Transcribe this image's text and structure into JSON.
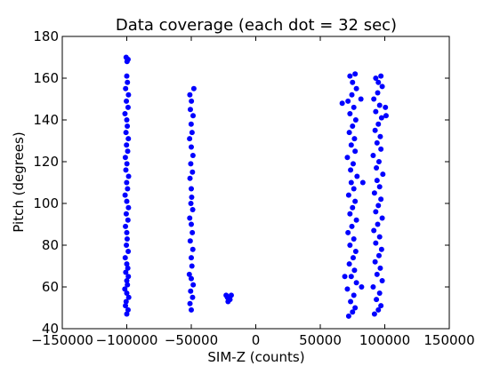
{
  "chart_data": {
    "type": "scatter",
    "title": "Data coverage (each dot = 32 sec)",
    "xlabel": "SIM-Z (counts)",
    "ylabel": "Pitch (degrees)",
    "xlim": [
      -150000,
      150000
    ],
    "ylim": [
      40,
      180
    ],
    "x_ticks": [
      -150000,
      -100000,
      -50000,
      0,
      50000,
      100000,
      150000
    ],
    "x_tick_labels": [
      "−150000",
      "−100000",
      "−50000",
      "0",
      "50000",
      "100000",
      "150000"
    ],
    "y_ticks": [
      40,
      60,
      80,
      100,
      120,
      140,
      160,
      180
    ],
    "y_tick_labels": [
      "40",
      "60",
      "80",
      "100",
      "120",
      "140",
      "160",
      "180"
    ],
    "grid": false,
    "marker_color": "#0000ff",
    "series": [
      {
        "points": [
          [
            -100000,
            47
          ],
          [
            -99000,
            49
          ],
          [
            -101000,
            51
          ],
          [
            -100500,
            53
          ],
          [
            -98500,
            55
          ],
          [
            -100000,
            57
          ],
          [
            -101500,
            59
          ],
          [
            -99500,
            61
          ],
          [
            -100000,
            63
          ],
          [
            -98800,
            65
          ],
          [
            -100800,
            67
          ],
          [
            -99200,
            69
          ],
          [
            -100000,
            71
          ],
          [
            -101200,
            74
          ],
          [
            -98900,
            77
          ],
          [
            -100300,
            80
          ],
          [
            -99700,
            83
          ],
          [
            -100000,
            86
          ],
          [
            -101000,
            89
          ],
          [
            -99100,
            92
          ],
          [
            -100400,
            95
          ],
          [
            -98700,
            98
          ],
          [
            -100000,
            101
          ],
          [
            -101300,
            104
          ],
          [
            -99400,
            107
          ],
          [
            -100100,
            110
          ],
          [
            -98600,
            113
          ],
          [
            -100700,
            116
          ],
          [
            -99900,
            119
          ],
          [
            -101100,
            122
          ],
          [
            -99300,
            125
          ],
          [
            -100200,
            128
          ],
          [
            -98800,
            131
          ],
          [
            -100600,
            134
          ],
          [
            -99600,
            137
          ],
          [
            -100000,
            140
          ],
          [
            -101400,
            143
          ],
          [
            -99000,
            146
          ],
          [
            -100300,
            149
          ],
          [
            -98700,
            152
          ],
          [
            -100900,
            155
          ],
          [
            -99500,
            158
          ],
          [
            -100000,
            161
          ],
          [
            -99800,
            168
          ],
          [
            -100500,
            170
          ],
          [
            -99000,
            169
          ],
          [
            -50000,
            49
          ],
          [
            -51000,
            52
          ],
          [
            -49000,
            55
          ],
          [
            -50500,
            58
          ],
          [
            -48500,
            61
          ],
          [
            -50000,
            64
          ],
          [
            -51500,
            66
          ],
          [
            -49500,
            70
          ],
          [
            -50000,
            74
          ],
          [
            -48800,
            78
          ],
          [
            -50800,
            82
          ],
          [
            -49200,
            86
          ],
          [
            -50000,
            90
          ],
          [
            -51200,
            93
          ],
          [
            -48900,
            97
          ],
          [
            -50300,
            100
          ],
          [
            -49700,
            103
          ],
          [
            -50000,
            107
          ],
          [
            -51000,
            112
          ],
          [
            -49100,
            115
          ],
          [
            -50400,
            119
          ],
          [
            -48700,
            123
          ],
          [
            -50000,
            127
          ],
          [
            -51300,
            131
          ],
          [
            -49400,
            134
          ],
          [
            -50100,
            138
          ],
          [
            -48600,
            142
          ],
          [
            -50700,
            145
          ],
          [
            -49900,
            149
          ],
          [
            -51100,
            152
          ],
          [
            -48000,
            155
          ],
          [
            -23000,
            56
          ],
          [
            -21000,
            55
          ],
          [
            -19000,
            56
          ],
          [
            -22000,
            55
          ],
          [
            -20000,
            54
          ],
          [
            -21500,
            53
          ],
          [
            72000,
            46
          ],
          [
            75000,
            48
          ],
          [
            77000,
            50
          ],
          [
            73500,
            53
          ],
          [
            76000,
            56
          ],
          [
            71000,
            59
          ],
          [
            78000,
            62
          ],
          [
            74000,
            65
          ],
          [
            76500,
            68
          ],
          [
            72500,
            71
          ],
          [
            75500,
            74
          ],
          [
            77500,
            77
          ],
          [
            73000,
            80
          ],
          [
            76000,
            83
          ],
          [
            71500,
            86
          ],
          [
            74500,
            89
          ],
          [
            78000,
            92
          ],
          [
            73000,
            95
          ],
          [
            75000,
            98
          ],
          [
            77000,
            101
          ],
          [
            72000,
            104
          ],
          [
            76000,
            107
          ],
          [
            74000,
            110
          ],
          [
            78500,
            113
          ],
          [
            73500,
            116
          ],
          [
            75500,
            119
          ],
          [
            71000,
            122
          ],
          [
            77000,
            125
          ],
          [
            74000,
            128
          ],
          [
            76500,
            131
          ],
          [
            72500,
            134
          ],
          [
            75000,
            137
          ],
          [
            77500,
            140
          ],
          [
            73000,
            143
          ],
          [
            76000,
            146
          ],
          [
            71500,
            149
          ],
          [
            74500,
            152
          ],
          [
            78000,
            155
          ],
          [
            75000,
            158
          ],
          [
            73000,
            161
          ],
          [
            77000,
            162
          ],
          [
            82000,
            60
          ],
          [
            83000,
            110
          ],
          [
            81500,
            150
          ],
          [
            69000,
            65
          ],
          [
            67000,
            148
          ],
          [
            92000,
            47
          ],
          [
            95000,
            49
          ],
          [
            97000,
            51
          ],
          [
            93500,
            54
          ],
          [
            96000,
            57
          ],
          [
            91000,
            60
          ],
          [
            98000,
            63
          ],
          [
            94000,
            66
          ],
          [
            96500,
            69
          ],
          [
            92500,
            72
          ],
          [
            95500,
            75
          ],
          [
            97500,
            78
          ],
          [
            93000,
            81
          ],
          [
            96000,
            84
          ],
          [
            91500,
            87
          ],
          [
            94500,
            90
          ],
          [
            98000,
            93
          ],
          [
            93000,
            96
          ],
          [
            95000,
            99
          ],
          [
            97000,
            102
          ],
          [
            92000,
            105
          ],
          [
            96000,
            108
          ],
          [
            94000,
            111
          ],
          [
            98500,
            114
          ],
          [
            93500,
            117
          ],
          [
            95500,
            120
          ],
          [
            91000,
            123
          ],
          [
            97000,
            126
          ],
          [
            94000,
            129
          ],
          [
            96500,
            132
          ],
          [
            92500,
            135
          ],
          [
            95000,
            138
          ],
          [
            97500,
            141
          ],
          [
            93000,
            144
          ],
          [
            96000,
            147
          ],
          [
            91500,
            150
          ],
          [
            94500,
            153
          ],
          [
            98000,
            156
          ],
          [
            95000,
            158
          ],
          [
            93000,
            160
          ],
          [
            97000,
            161
          ],
          [
            101000,
            142
          ],
          [
            100500,
            146
          ]
        ]
      }
    ]
  }
}
